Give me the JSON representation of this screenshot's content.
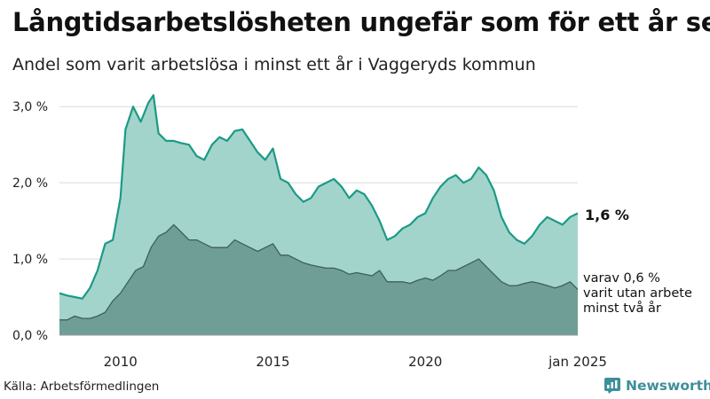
{
  "title": "Långtidsarbetslösheten ungefär som för ett år sen",
  "subtitle": "Andel som varit arbetslösa i minst ett år i Vaggeryds kommun",
  "source": "Källa: Arbetsförmedlingen",
  "brand": "Newsworthy",
  "colors": {
    "total_fill": "#a3d4cc",
    "total_line": "#1b9a85",
    "long_fill": "#6f9e96",
    "long_line": "#3c5f59",
    "grid": "#d9d9d9",
    "brand": "#3f8f9a"
  },
  "chart_data": {
    "type": "area",
    "x_range": [
      "2008-01",
      "2025-01"
    ],
    "ylim": [
      0,
      3.2
    ],
    "y_ticks": [
      0,
      1,
      2,
      3
    ],
    "y_tick_labels": [
      "0,0 %",
      "1,0 %",
      "2,0 %",
      "3,0 %"
    ],
    "x_ticks": [
      "2010-01",
      "2015-01",
      "2020-01",
      "2025-01"
    ],
    "x_tick_labels": [
      "2010",
      "2015",
      "2020",
      "jan 2025"
    ],
    "grid": true,
    "series": [
      {
        "key": "total",
        "end_label": "1,6 %",
        "points": [
          [
            "2008-01",
            0.55
          ],
          [
            "2008-04",
            0.52
          ],
          [
            "2008-07",
            0.5
          ],
          [
            "2008-10",
            0.48
          ],
          [
            "2009-01",
            0.62
          ],
          [
            "2009-04",
            0.85
          ],
          [
            "2009-07",
            1.2
          ],
          [
            "2009-10",
            1.25
          ],
          [
            "2010-01",
            1.8
          ],
          [
            "2010-03",
            2.7
          ],
          [
            "2010-06",
            3.0
          ],
          [
            "2010-09",
            2.8
          ],
          [
            "2010-12",
            3.05
          ],
          [
            "2011-02",
            3.15
          ],
          [
            "2011-04",
            2.65
          ],
          [
            "2011-07",
            2.55
          ],
          [
            "2011-10",
            2.55
          ],
          [
            "2012-01",
            2.52
          ],
          [
            "2012-04",
            2.5
          ],
          [
            "2012-07",
            2.35
          ],
          [
            "2012-10",
            2.3
          ],
          [
            "2013-01",
            2.5
          ],
          [
            "2013-04",
            2.6
          ],
          [
            "2013-07",
            2.55
          ],
          [
            "2013-10",
            2.68
          ],
          [
            "2014-01",
            2.7
          ],
          [
            "2014-04",
            2.55
          ],
          [
            "2014-07",
            2.4
          ],
          [
            "2014-10",
            2.3
          ],
          [
            "2015-01",
            2.45
          ],
          [
            "2015-04",
            2.05
          ],
          [
            "2015-07",
            2.0
          ],
          [
            "2015-10",
            1.85
          ],
          [
            "2016-01",
            1.75
          ],
          [
            "2016-04",
            1.8
          ],
          [
            "2016-07",
            1.95
          ],
          [
            "2016-10",
            2.0
          ],
          [
            "2017-01",
            2.05
          ],
          [
            "2017-04",
            1.95
          ],
          [
            "2017-07",
            1.8
          ],
          [
            "2017-10",
            1.9
          ],
          [
            "2018-01",
            1.85
          ],
          [
            "2018-04",
            1.7
          ],
          [
            "2018-07",
            1.5
          ],
          [
            "2018-10",
            1.25
          ],
          [
            "2019-01",
            1.3
          ],
          [
            "2019-04",
            1.4
          ],
          [
            "2019-07",
            1.45
          ],
          [
            "2019-10",
            1.55
          ],
          [
            "2020-01",
            1.6
          ],
          [
            "2020-04",
            1.8
          ],
          [
            "2020-07",
            1.95
          ],
          [
            "2020-10",
            2.05
          ],
          [
            "2021-01",
            2.1
          ],
          [
            "2021-04",
            2.0
          ],
          [
            "2021-07",
            2.05
          ],
          [
            "2021-10",
            2.2
          ],
          [
            "2022-01",
            2.1
          ],
          [
            "2022-04",
            1.9
          ],
          [
            "2022-07",
            1.55
          ],
          [
            "2022-10",
            1.35
          ],
          [
            "2023-01",
            1.25
          ],
          [
            "2023-04",
            1.2
          ],
          [
            "2023-07",
            1.3
          ],
          [
            "2023-10",
            1.45
          ],
          [
            "2024-01",
            1.55
          ],
          [
            "2024-04",
            1.5
          ],
          [
            "2024-07",
            1.45
          ],
          [
            "2024-10",
            1.55
          ],
          [
            "2025-01",
            1.6
          ]
        ]
      },
      {
        "key": "long",
        "end_label_lines": [
          "varav 0,6 %",
          "varit utan arbete",
          "minst två år"
        ],
        "points": [
          [
            "2008-01",
            0.2
          ],
          [
            "2008-04",
            0.2
          ],
          [
            "2008-07",
            0.25
          ],
          [
            "2008-10",
            0.22
          ],
          [
            "2009-01",
            0.22
          ],
          [
            "2009-04",
            0.25
          ],
          [
            "2009-07",
            0.3
          ],
          [
            "2009-10",
            0.45
          ],
          [
            "2010-01",
            0.55
          ],
          [
            "2010-04",
            0.7
          ],
          [
            "2010-07",
            0.85
          ],
          [
            "2010-10",
            0.9
          ],
          [
            "2011-01",
            1.15
          ],
          [
            "2011-04",
            1.3
          ],
          [
            "2011-07",
            1.35
          ],
          [
            "2011-10",
            1.45
          ],
          [
            "2012-01",
            1.35
          ],
          [
            "2012-04",
            1.25
          ],
          [
            "2012-07",
            1.25
          ],
          [
            "2012-10",
            1.2
          ],
          [
            "2013-01",
            1.15
          ],
          [
            "2013-04",
            1.15
          ],
          [
            "2013-07",
            1.15
          ],
          [
            "2013-10",
            1.25
          ],
          [
            "2014-01",
            1.2
          ],
          [
            "2014-04",
            1.15
          ],
          [
            "2014-07",
            1.1
          ],
          [
            "2014-10",
            1.15
          ],
          [
            "2015-01",
            1.2
          ],
          [
            "2015-04",
            1.05
          ],
          [
            "2015-07",
            1.05
          ],
          [
            "2015-10",
            1.0
          ],
          [
            "2016-01",
            0.95
          ],
          [
            "2016-04",
            0.92
          ],
          [
            "2016-07",
            0.9
          ],
          [
            "2016-10",
            0.88
          ],
          [
            "2017-01",
            0.88
          ],
          [
            "2017-04",
            0.85
          ],
          [
            "2017-07",
            0.8
          ],
          [
            "2017-10",
            0.82
          ],
          [
            "2018-01",
            0.8
          ],
          [
            "2018-04",
            0.78
          ],
          [
            "2018-07",
            0.85
          ],
          [
            "2018-10",
            0.7
          ],
          [
            "2019-01",
            0.7
          ],
          [
            "2019-04",
            0.7
          ],
          [
            "2019-07",
            0.68
          ],
          [
            "2019-10",
            0.72
          ],
          [
            "2020-01",
            0.75
          ],
          [
            "2020-04",
            0.72
          ],
          [
            "2020-07",
            0.78
          ],
          [
            "2020-10",
            0.85
          ],
          [
            "2021-01",
            0.85
          ],
          [
            "2021-04",
            0.9
          ],
          [
            "2021-07",
            0.95
          ],
          [
            "2021-10",
            1.0
          ],
          [
            "2022-01",
            0.9
          ],
          [
            "2022-04",
            0.8
          ],
          [
            "2022-07",
            0.7
          ],
          [
            "2022-10",
            0.65
          ],
          [
            "2023-01",
            0.65
          ],
          [
            "2023-04",
            0.68
          ],
          [
            "2023-07",
            0.7
          ],
          [
            "2023-10",
            0.68
          ],
          [
            "2024-01",
            0.65
          ],
          [
            "2024-04",
            0.62
          ],
          [
            "2024-07",
            0.65
          ],
          [
            "2024-10",
            0.7
          ],
          [
            "2025-01",
            0.6
          ]
        ]
      }
    ]
  }
}
